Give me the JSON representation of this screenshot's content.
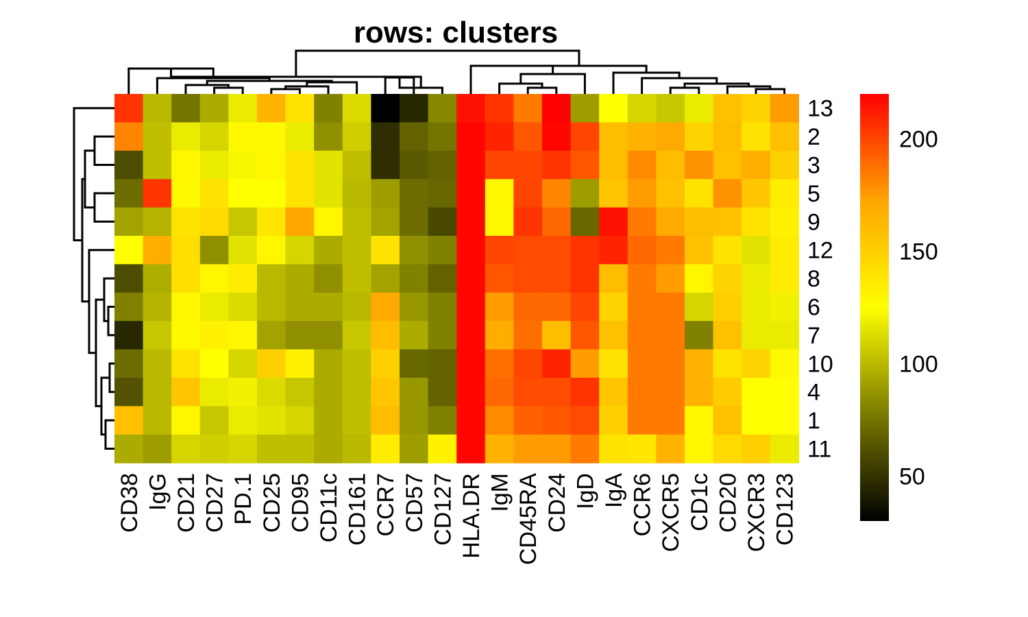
{
  "chart_data": {
    "type": "heatmap",
    "title": "rows: clusters",
    "columns": [
      "CD38",
      "IgG",
      "CD21",
      "CD27",
      "PD.1",
      "CD25",
      "CD95",
      "CD11c",
      "CD161",
      "CCR7",
      "CD57",
      "CD127",
      "HLA.DR",
      "IgM",
      "CD45RA",
      "CD24",
      "IgD",
      "IgA",
      "CCR6",
      "CXCR5",
      "CD1c",
      "CD20",
      "CXCR3",
      "CD123"
    ],
    "rows": [
      "13",
      "2",
      "3",
      "5",
      "9",
      "12",
      "8",
      "6",
      "7",
      "10",
      "4",
      "1",
      "11"
    ],
    "values": [
      [
        205,
        100,
        75,
        95,
        118,
        165,
        140,
        80,
        112,
        30,
        45,
        82,
        215,
        205,
        185,
        220,
        90,
        125,
        110,
        105,
        118,
        158,
        148,
        175
      ],
      [
        182,
        102,
        118,
        110,
        128,
        128,
        118,
        85,
        108,
        48,
        68,
        75,
        218,
        210,
        195,
        218,
        200,
        160,
        165,
        170,
        148,
        160,
        140,
        158
      ],
      [
        60,
        102,
        130,
        118,
        122,
        130,
        140,
        115,
        102,
        48,
        65,
        68,
        218,
        200,
        200,
        205,
        195,
        160,
        180,
        160,
        178,
        158,
        168,
        150
      ],
      [
        72,
        205,
        128,
        140,
        125,
        125,
        140,
        115,
        100,
        90,
        72,
        70,
        218,
        130,
        200,
        182,
        90,
        155,
        175,
        158,
        140,
        178,
        155,
        135
      ],
      [
        92,
        98,
        140,
        145,
        105,
        138,
        172,
        130,
        102,
        92,
        72,
        58,
        218,
        128,
        205,
        190,
        70,
        215,
        185,
        170,
        160,
        158,
        140,
        132
      ],
      [
        125,
        168,
        142,
        85,
        115,
        130,
        110,
        95,
        102,
        140,
        85,
        80,
        218,
        200,
        198,
        198,
        205,
        210,
        190,
        185,
        158,
        140,
        115,
        135
      ],
      [
        60,
        96,
        142,
        130,
        135,
        100,
        95,
        85,
        102,
        92,
        80,
        68,
        218,
        195,
        198,
        198,
        205,
        160,
        185,
        175,
        130,
        148,
        118,
        135
      ],
      [
        80,
        98,
        130,
        118,
        112,
        100,
        95,
        95,
        100,
        170,
        88,
        80,
        218,
        175,
        190,
        190,
        200,
        148,
        185,
        185,
        110,
        150,
        118,
        120
      ],
      [
        45,
        105,
        128,
        132,
        130,
        92,
        85,
        85,
        105,
        160,
        95,
        80,
        218,
        168,
        188,
        160,
        195,
        158,
        185,
        185,
        80,
        158,
        118,
        118
      ],
      [
        72,
        100,
        140,
        125,
        110,
        150,
        132,
        95,
        102,
        150,
        70,
        68,
        218,
        188,
        200,
        210,
        175,
        140,
        185,
        185,
        165,
        140,
        148,
        128
      ],
      [
        62,
        100,
        155,
        118,
        120,
        112,
        105,
        95,
        102,
        155,
        88,
        68,
        218,
        190,
        198,
        198,
        205,
        155,
        185,
        185,
        165,
        152,
        125,
        125
      ],
      [
        158,
        100,
        130,
        105,
        118,
        115,
        110,
        95,
        102,
        160,
        88,
        80,
        218,
        180,
        192,
        195,
        198,
        150,
        185,
        185,
        130,
        158,
        125,
        125
      ],
      [
        95,
        90,
        110,
        108,
        110,
        102,
        102,
        95,
        100,
        135,
        90,
        132,
        218,
        165,
        175,
        175,
        185,
        140,
        138,
        165,
        130,
        145,
        150,
        118
      ]
    ],
    "color_scale": {
      "range": [
        30,
        220
      ],
      "ticks": [
        50,
        100,
        150,
        200
      ],
      "colors": [
        "#000000",
        "#7a7a00",
        "#ffff00",
        "#ffa500",
        "#ff0000"
      ]
    },
    "row_dendrogram": true,
    "column_dendrogram": true
  }
}
